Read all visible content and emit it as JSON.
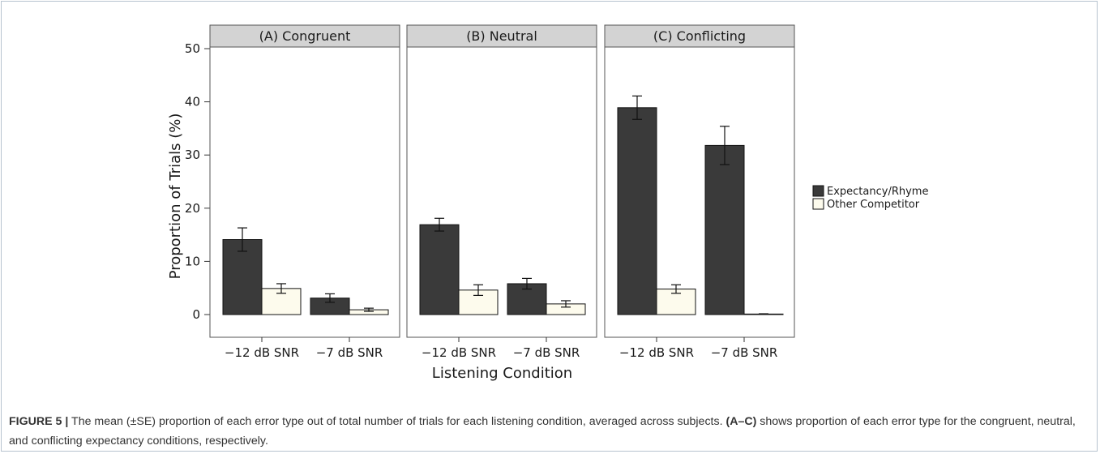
{
  "chart_data": {
    "type": "bar",
    "ylabel": "Proportion of Trials (%)",
    "xlabel": "Listening Condition",
    "ylim": [
      0,
      50
    ],
    "yticks": [
      0,
      10,
      20,
      30,
      40,
      50
    ],
    "categories": [
      "−12 dB SNR",
      "−7 dB SNR"
    ],
    "panels": [
      {
        "title": "(A) Congruent",
        "series": [
          {
            "name": "Expectancy/Rhyme",
            "values": [
              14.1,
              3.1
            ],
            "se": [
              2.2,
              0.8
            ]
          },
          {
            "name": "Other Competitor",
            "values": [
              4.9,
              0.9
            ],
            "se": [
              0.9,
              0.3
            ]
          }
        ]
      },
      {
        "title": "(B) Neutral",
        "series": [
          {
            "name": "Expectancy/Rhyme",
            "values": [
              16.9,
              5.8
            ],
            "se": [
              1.2,
              1.0
            ]
          },
          {
            "name": "Other Competitor",
            "values": [
              4.6,
              2.0
            ],
            "se": [
              1.0,
              0.6
            ]
          }
        ]
      },
      {
        "title": "(C) Conflicting",
        "series": [
          {
            "name": "Expectancy/Rhyme",
            "values": [
              38.9,
              31.8
            ],
            "se": [
              2.2,
              3.6
            ]
          },
          {
            "name": "Other Competitor",
            "values": [
              4.8,
              0.1
            ],
            "se": [
              0.8,
              0.05
            ]
          }
        ]
      }
    ],
    "legend": {
      "placement": "right",
      "entries": [
        {
          "name": "Expectancy/Rhyme",
          "color": "#3a3a3a"
        },
        {
          "name": "Other Competitor",
          "color": "#fdfbed"
        }
      ]
    },
    "grid": false
  },
  "caption": {
    "label": "FIGURE 5 |",
    "text1": " The mean (±SE) proportion of each error type out of total number of trials for each listening condition, averaged across subjects. ",
    "bold": "(A–C)",
    "text2": " shows proportion of each error type for the congruent, neutral, and conflicting expectancy conditions, respectively."
  }
}
